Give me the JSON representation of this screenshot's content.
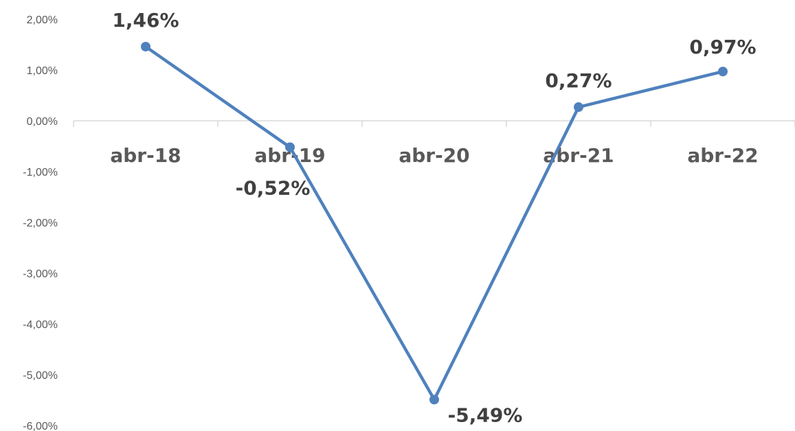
{
  "chart_data": {
    "type": "line",
    "title": "",
    "xlabel": "",
    "ylabel": "",
    "categories": [
      "abr-18",
      "abr-19",
      "abr-20",
      "abr-21",
      "abr-22"
    ],
    "series": [
      {
        "values": [
          1.46,
          -0.52,
          -5.49,
          0.27,
          0.97
        ],
        "labels": [
          "1,46%",
          "-0,52%",
          "-5,49%",
          "0,27%",
          "0,97%"
        ],
        "color": "#4f81bd"
      }
    ],
    "ylim": [
      -6,
      2
    ],
    "yticks": [
      2,
      1,
      0,
      -1,
      -2,
      -3,
      -4,
      -5,
      -6
    ],
    "ytick_labels": [
      "2,00%",
      "1,00%",
      "0,00%",
      "-1,00%",
      "-2,00%",
      "-3,00%",
      "-4,00%",
      "-5,00%",
      "-6,00%"
    ],
    "grid": false,
    "legend": "none",
    "axis_color": "#d9d9d9",
    "text_color": "#595959",
    "label_color": "#404040"
  }
}
